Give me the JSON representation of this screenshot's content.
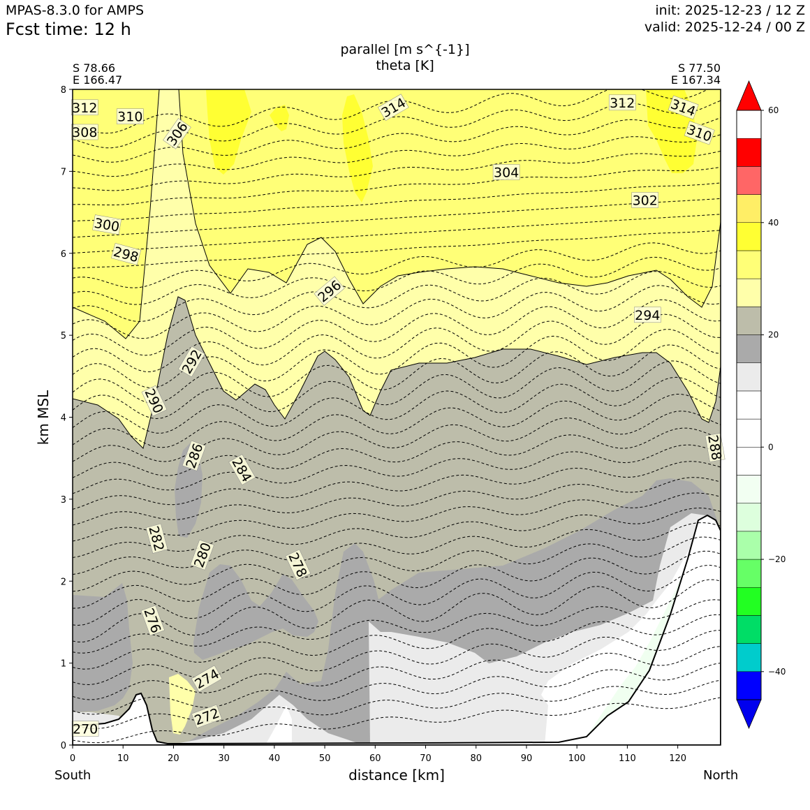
{
  "header": {
    "model": "MPAS-8.3.0 for AMPS",
    "fcst": "Fcst time:   12 h",
    "init": "init: 2025-12-23 / 12 Z",
    "valid": "valid: 2025-12-24 / 00 Z"
  },
  "endpoints": {
    "left_lat": "S 78.66",
    "left_lon": "E 166.47",
    "right_lat": "S 77.50",
    "right_lon": "E 167.34",
    "left_dir": "South",
    "right_dir": "North"
  },
  "chart_data": {
    "type": "cross-section",
    "title": "parallel [m s^{-1}]",
    "subtitle": "theta [K]",
    "xlabel": "distance [km]",
    "ylabel": "km MSL",
    "xlim": [
      0,
      128.5
    ],
    "ylim": [
      0,
      8
    ],
    "xticks": [
      "0",
      "10",
      "20",
      "30",
      "40",
      "50",
      "60",
      "70",
      "80",
      "90",
      "100",
      "110",
      "120"
    ],
    "yticks": [
      "0",
      "1",
      "2",
      "3",
      "4",
      "5",
      "6",
      "7",
      "8"
    ],
    "colorbar": {
      "levels": [
        -50,
        -45,
        -40,
        -35,
        -30,
        -25,
        -20,
        -15,
        -10,
        -5,
        0,
        5,
        10,
        15,
        20,
        25,
        30,
        35,
        40,
        45,
        50,
        55,
        60
      ],
      "colors": [
        "#0000ee",
        "#0000ff",
        "#00cccc",
        "#00dd66",
        "#22ff22",
        "#66ff66",
        "#aaffaa",
        "#ddffdd",
        "#f2fff2",
        "#ffffff",
        "#ffffff",
        "#ffffff",
        "#ebebeb",
        "#aaaaaa",
        "#bdbdaa",
        "#ffffaa",
        "#ffff77",
        "#ffff33",
        "#ffee66",
        "#ff6666",
        "#ff0000"
      ],
      "tick_labels": [
        "60",
        "40",
        "20",
        "0",
        "−20",
        "−40"
      ],
      "tick_values": [
        60,
        40,
        20,
        0,
        -20,
        -40
      ]
    },
    "theta_labels": [
      {
        "text": "312",
        "x": 2.4,
        "y": 7.78,
        "rot": 0
      },
      {
        "text": "310",
        "x": 11.4,
        "y": 7.67,
        "rot": 0
      },
      {
        "text": "308",
        "x": 2.4,
        "y": 7.48,
        "rot": 0
      },
      {
        "text": "306",
        "x": 20.7,
        "y": 7.46,
        "rot": -55
      },
      {
        "text": "314",
        "x": 63.6,
        "y": 7.78,
        "rot": -30
      },
      {
        "text": "312",
        "x": 109,
        "y": 7.84,
        "rot": 0
      },
      {
        "text": "314",
        "x": 121.1,
        "y": 7.78,
        "rot": 20
      },
      {
        "text": "310",
        "x": 124.3,
        "y": 7.47,
        "rot": 20
      },
      {
        "text": "304",
        "x": 86,
        "y": 6.99,
        "rot": 0
      },
      {
        "text": "302",
        "x": 113.5,
        "y": 6.65,
        "rot": 0
      },
      {
        "text": "300",
        "x": 6.8,
        "y": 6.35,
        "rot": 10
      },
      {
        "text": "298",
        "x": 10.6,
        "y": 5.99,
        "rot": 15
      },
      {
        "text": "296",
        "x": 50.9,
        "y": 5.54,
        "rot": -40
      },
      {
        "text": "294",
        "x": 114,
        "y": 5.25,
        "rot": 0
      },
      {
        "text": "292",
        "x": 23.6,
        "y": 4.68,
        "rot": -60
      },
      {
        "text": "290",
        "x": 16.2,
        "y": 4.2,
        "rot": 65
      },
      {
        "text": "286",
        "x": 24.1,
        "y": 3.53,
        "rot": -70
      },
      {
        "text": "284",
        "x": 33.6,
        "y": 3.36,
        "rot": 60
      },
      {
        "text": "282",
        "x": 16.7,
        "y": 2.52,
        "rot": 75
      },
      {
        "text": "280",
        "x": 25.7,
        "y": 2.32,
        "rot": -70
      },
      {
        "text": "278",
        "x": 44.7,
        "y": 2.2,
        "rot": 65
      },
      {
        "text": "276",
        "x": 15.9,
        "y": 1.52,
        "rot": 70
      },
      {
        "text": "274",
        "x": 26.6,
        "y": 0.81,
        "rot": -30
      },
      {
        "text": "272",
        "x": 26.6,
        "y": 0.35,
        "rot": -20
      },
      {
        "text": "270",
        "x": 2.5,
        "y": 0.2,
        "rot": 0
      },
      {
        "text": "288",
        "x": 127.4,
        "y": 3.63,
        "rot": 80
      }
    ]
  }
}
